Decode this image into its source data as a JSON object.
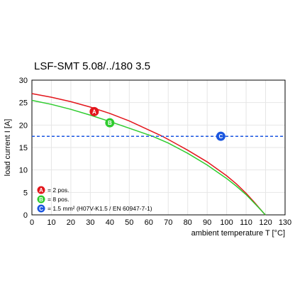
{
  "chart_data": {
    "type": "line",
    "title": "LSF-SMT 5.08/../180 3.5",
    "xlabel": "ambient temperature T [°C]",
    "ylabel": "load current I [A]",
    "xlim": [
      0,
      130
    ],
    "ylim": [
      0,
      30
    ],
    "xticks": [
      "0",
      "10",
      "20",
      "30",
      "40",
      "50",
      "60",
      "70",
      "80",
      "90",
      "100",
      "110",
      "120",
      "130"
    ],
    "yticks": [
      "0",
      "5",
      "10",
      "15",
      "20",
      "25",
      "30"
    ],
    "grid": true,
    "legend_position": "bottom-left",
    "series": [
      {
        "marker": "A",
        "color": "#e3161c",
        "legend_label": "= 2 pos.",
        "marker_x": 32,
        "marker_y": 23,
        "x": [
          0,
          10,
          20,
          30,
          40,
          50,
          60,
          67,
          70,
          80,
          90,
          100,
          105,
          110,
          114,
          116,
          118,
          119,
          120
        ],
        "y": [
          27,
          26.2,
          25.2,
          24.0,
          22.6,
          20.9,
          18.9,
          17.5,
          16.8,
          14.4,
          11.8,
          8.7,
          6.9,
          4.8,
          2.9,
          1.9,
          0.9,
          0.4,
          0
        ]
      },
      {
        "marker": "B",
        "color": "#2ecc2e",
        "legend_label": "= 8 pos.",
        "marker_x": 40,
        "marker_y": 20.5,
        "x": [
          0,
          10,
          20,
          30,
          40,
          50,
          60,
          62,
          70,
          80,
          90,
          100,
          105,
          110,
          114,
          116,
          118,
          119,
          120
        ],
        "y": [
          25.5,
          24.6,
          23.5,
          22.2,
          20.8,
          19.3,
          17.8,
          17.5,
          16.0,
          13.7,
          11.1,
          8.1,
          6.4,
          4.5,
          2.7,
          1.8,
          0.9,
          0.4,
          0
        ]
      },
      {
        "marker": "C",
        "color": "#1a56e0",
        "legend_label": "= 1.5 mm² (H07V-K1.5 / EN 60947-7-1)",
        "marker_x": 97,
        "marker_y": 17.5,
        "dashed": true,
        "x": [
          0,
          130
        ],
        "y": [
          17.5,
          17.5
        ]
      }
    ]
  }
}
